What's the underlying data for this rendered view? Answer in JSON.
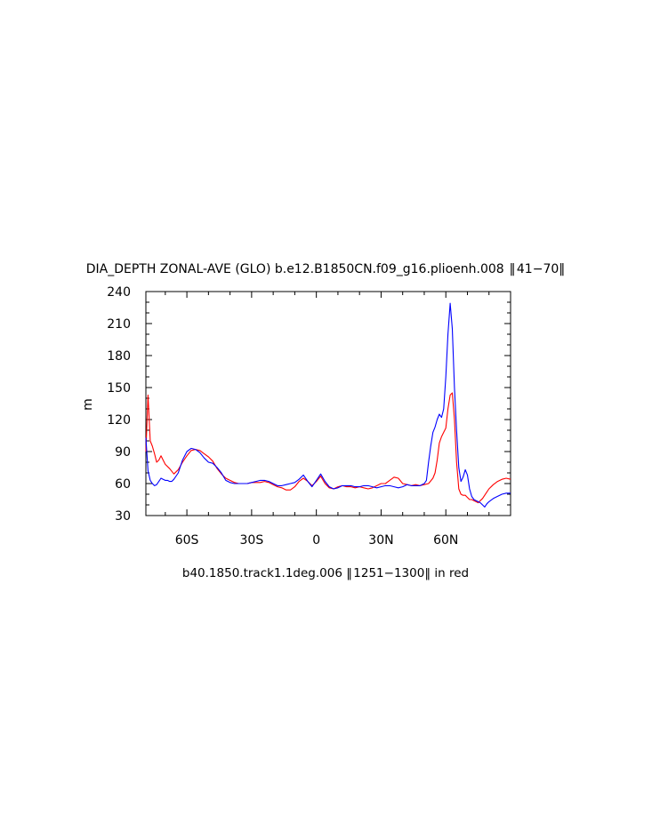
{
  "chart_data": {
    "type": "line",
    "title": "DIA_DEPTH ZONAL-AVE (GLO) b.e12.B1850CN.f09_g16.plioenh.008  ‖ 41−70‖",
    "xlabel": "b40.1850.track1.1deg.006 ‖ 1251−1300‖ in red",
    "ylabel": "m",
    "xlim": [
      -79,
      90
    ],
    "ylim": [
      30,
      240
    ],
    "yticks": [
      30,
      60,
      90,
      120,
      150,
      180,
      210,
      240
    ],
    "ytick_labels": [
      "30",
      "60",
      "90",
      "120",
      "150",
      "180",
      "210",
      "240"
    ],
    "xticks": [
      -60,
      -30,
      0,
      30,
      60
    ],
    "xtick_labels": [
      "60S",
      "30S",
      "0",
      "30N",
      "60N"
    ],
    "grid": false,
    "colors": {
      "series_red": "#ff0000",
      "series_blue": "#0000ff",
      "axis": "#000000"
    },
    "series": [
      {
        "color": "#ff0000",
        "x": [
          -79,
          -78,
          -77,
          -76,
          -75,
          -74,
          -73,
          -72,
          -71,
          -70,
          -68,
          -66,
          -64,
          -62,
          -60,
          -58,
          -56,
          -54,
          -52,
          -50,
          -48,
          -46,
          -44,
          -42,
          -40,
          -38,
          -36,
          -34,
          -32,
          -30,
          -28,
          -26,
          -24,
          -22,
          -20,
          -18,
          -16,
          -14,
          -12,
          -10,
          -8,
          -6,
          -4,
          -2,
          0,
          2,
          4,
          6,
          8,
          10,
          12,
          14,
          16,
          18,
          20,
          22,
          24,
          26,
          28,
          30,
          32,
          34,
          36,
          38,
          40,
          42,
          44,
          46,
          48,
          50,
          52,
          54,
          55,
          56,
          57,
          58,
          59,
          60,
          61,
          62,
          63,
          64,
          65,
          66,
          67,
          68,
          69,
          70,
          71,
          72,
          73,
          74,
          75,
          76,
          77,
          78,
          79,
          80,
          82,
          84,
          86,
          88,
          90
        ],
        "y": [
          90,
          143,
          100,
          95,
          88,
          80,
          82,
          86,
          82,
          78,
          74,
          69,
          73,
          80,
          86,
          91,
          92,
          91,
          88,
          85,
          81,
          74,
          69,
          65,
          63,
          61,
          60,
          60,
          60,
          61,
          61,
          61,
          62,
          61,
          59,
          57,
          56,
          54,
          54,
          57,
          62,
          65,
          62,
          58,
          62,
          67,
          60,
          56,
          55,
          57,
          58,
          57,
          57,
          56,
          57,
          56,
          55,
          56,
          58,
          60,
          60,
          63,
          66,
          65,
          60,
          59,
          58,
          59,
          58,
          59,
          60,
          65,
          70,
          82,
          98,
          104,
          108,
          112,
          130,
          143,
          145,
          120,
          80,
          55,
          50,
          49,
          49,
          47,
          45,
          45,
          44,
          43,
          42,
          44,
          46,
          49,
          52,
          55,
          59,
          62,
          64,
          65,
          64
        ]
      },
      {
        "color": "#0000ff",
        "x": [
          -79,
          -78,
          -77,
          -76,
          -75,
          -74,
          -73,
          -72,
          -71,
          -70,
          -69,
          -68,
          -67,
          -66,
          -64,
          -62,
          -60,
          -58,
          -56,
          -54,
          -52,
          -50,
          -48,
          -46,
          -44,
          -42,
          -40,
          -38,
          -36,
          -34,
          -32,
          -30,
          -28,
          -26,
          -24,
          -22,
          -20,
          -18,
          -16,
          -14,
          -12,
          -10,
          -8,
          -6,
          -4,
          -2,
          0,
          2,
          4,
          6,
          8,
          10,
          12,
          14,
          16,
          18,
          20,
          22,
          24,
          26,
          28,
          30,
          32,
          34,
          36,
          38,
          40,
          42,
          44,
          46,
          48,
          50,
          51,
          52,
          53,
          54,
          55,
          56,
          57,
          58,
          59,
          60,
          61,
          62,
          63,
          64,
          65,
          66,
          67,
          68,
          69,
          70,
          71,
          72,
          73,
          74,
          75,
          76,
          77,
          78,
          79,
          80,
          82,
          84,
          86,
          88,
          90
        ],
        "y": [
          103,
          72,
          63,
          60,
          58,
          59,
          62,
          65,
          64,
          63,
          63,
          62,
          62,
          64,
          70,
          82,
          90,
          93,
          92,
          89,
          84,
          80,
          79,
          75,
          70,
          63,
          61,
          60,
          60,
          60,
          60,
          61,
          62,
          63,
          63,
          62,
          60,
          58,
          58,
          59,
          60,
          61,
          64,
          68,
          62,
          57,
          63,
          69,
          62,
          57,
          55,
          56,
          58,
          58,
          58,
          57,
          57,
          58,
          58,
          57,
          56,
          57,
          58,
          58,
          57,
          56,
          57,
          59,
          58,
          58,
          58,
          60,
          63,
          80,
          95,
          108,
          113,
          120,
          125,
          122,
          130,
          160,
          200,
          229,
          205,
          150,
          110,
          75,
          62,
          66,
          73,
          68,
          55,
          48,
          45,
          44,
          43,
          42,
          40,
          38,
          41,
          43,
          46,
          48,
          50,
          51,
          51
        ]
      }
    ]
  }
}
